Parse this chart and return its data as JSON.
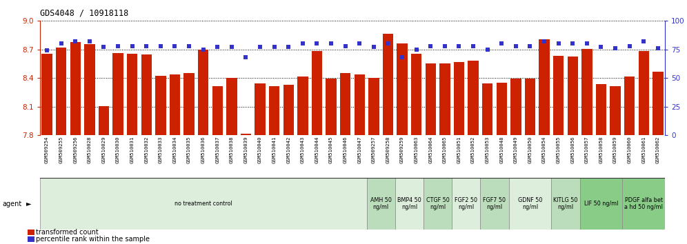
{
  "title": "GDS4048 / 10918118",
  "categories": [
    "GSM509254",
    "GSM509255",
    "GSM509256",
    "GSM510028",
    "GSM510029",
    "GSM510030",
    "GSM510031",
    "GSM510032",
    "GSM510033",
    "GSM510034",
    "GSM510035",
    "GSM510036",
    "GSM510037",
    "GSM510038",
    "GSM510039",
    "GSM510040",
    "GSM510041",
    "GSM510042",
    "GSM510043",
    "GSM510044",
    "GSM510045",
    "GSM510046",
    "GSM510047",
    "GSM509257",
    "GSM509258",
    "GSM509259",
    "GSM510063",
    "GSM510064",
    "GSM510065",
    "GSM510051",
    "GSM510052",
    "GSM510053",
    "GSM510048",
    "GSM510049",
    "GSM510050",
    "GSM510054",
    "GSM510055",
    "GSM510056",
    "GSM510057",
    "GSM510058",
    "GSM510059",
    "GSM510060",
    "GSM510061",
    "GSM510062"
  ],
  "bar_values": [
    8.655,
    8.72,
    8.775,
    8.755,
    8.105,
    8.66,
    8.655,
    8.65,
    8.425,
    8.44,
    8.45,
    8.695,
    8.315,
    8.4,
    7.82,
    8.345,
    8.315,
    8.33,
    8.42,
    8.68,
    8.395,
    8.45,
    8.44,
    8.405,
    8.865,
    8.76,
    8.655,
    8.555,
    8.55,
    8.565,
    8.58,
    8.345,
    8.35,
    8.395,
    8.395,
    8.805,
    8.63,
    8.625,
    8.705,
    8.335,
    8.315,
    8.415,
    8.68,
    8.465
  ],
  "percentile_values": [
    74,
    80,
    82,
    82,
    77,
    78,
    78,
    78,
    78,
    78,
    78,
    75,
    77,
    77,
    68,
    77,
    77,
    77,
    80,
    80,
    80,
    78,
    80,
    77,
    80,
    68,
    75,
    78,
    78,
    78,
    78,
    75,
    80,
    78,
    78,
    82,
    80,
    80,
    80,
    77,
    76,
    78,
    82,
    76
  ],
  "ylim_left": [
    7.8,
    9.0
  ],
  "ylim_right": [
    0,
    100
  ],
  "yticks_left": [
    7.8,
    8.1,
    8.4,
    8.7,
    9.0
  ],
  "yticks_right": [
    0,
    25,
    50,
    75,
    100
  ],
  "bar_color": "#CC2200",
  "dot_color": "#3333CC",
  "agent_groups": [
    {
      "label": "no treatment control",
      "start": 0,
      "end": 23,
      "color": "#DDEEDD"
    },
    {
      "label": "AMH 50\nng/ml",
      "start": 23,
      "end": 25,
      "color": "#BBDDBB"
    },
    {
      "label": "BMP4 50\nng/ml",
      "start": 25,
      "end": 27,
      "color": "#DDEEDD"
    },
    {
      "label": "CTGF 50\nng/ml",
      "start": 27,
      "end": 29,
      "color": "#BBDDBB"
    },
    {
      "label": "FGF2 50\nng/ml",
      "start": 29,
      "end": 31,
      "color": "#DDEEDD"
    },
    {
      "label": "FGF7 50\nng/ml",
      "start": 31,
      "end": 33,
      "color": "#BBDDBB"
    },
    {
      "label": "GDNF 50\nng/ml",
      "start": 33,
      "end": 36,
      "color": "#DDEEDD"
    },
    {
      "label": "KITLG 50\nng/ml",
      "start": 36,
      "end": 38,
      "color": "#BBDDBB"
    },
    {
      "label": "LIF 50 ng/ml",
      "start": 38,
      "end": 41,
      "color": "#88CC88"
    },
    {
      "label": "PDGF alfa bet\na hd 50 ng/ml",
      "start": 41,
      "end": 44,
      "color": "#88CC88"
    }
  ]
}
